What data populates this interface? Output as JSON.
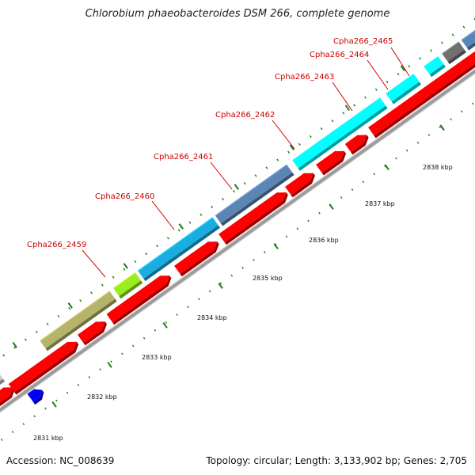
{
  "title": "Chlorobium phaeobacteroides DSM 266, complete genome",
  "accession": "Accession: NC_008639",
  "summary": "Topology: circular; Length: 3,133,902 bp; Genes: 2,705",
  "colors": {
    "backbone": "#9a9a9a",
    "cds": "#ff0000",
    "tick": "#1a7a1a",
    "gene_label": "#cc0000",
    "steelblue": "#5b86b4",
    "cyan": "#00ffff",
    "deepsky": "#1aaee0",
    "olive": "#b5b46a",
    "lime": "#99ee22",
    "gray": "#707070",
    "lightgray": "#c8c8c8",
    "blue": "#0000ff"
  },
  "gene_labels": [
    {
      "text": "Cpha266_2459"
    },
    {
      "text": "Cpha266_2460"
    },
    {
      "text": "Cpha266_2461"
    },
    {
      "text": "Cpha266_2462"
    },
    {
      "text": "Cpha266_2463"
    },
    {
      "text": "Cpha266_2464"
    },
    {
      "text": "Cpha266_2465"
    }
  ],
  "kbp_labels": [
    {
      "text": "2831 kbp"
    },
    {
      "text": "2832 kbp"
    },
    {
      "text": "2833 kbp"
    },
    {
      "text": "2834 kbp"
    },
    {
      "text": "2835 kbp"
    },
    {
      "text": "2836 kbp"
    },
    {
      "text": "2837 kbp"
    },
    {
      "text": "2838 kbp"
    }
  ]
}
